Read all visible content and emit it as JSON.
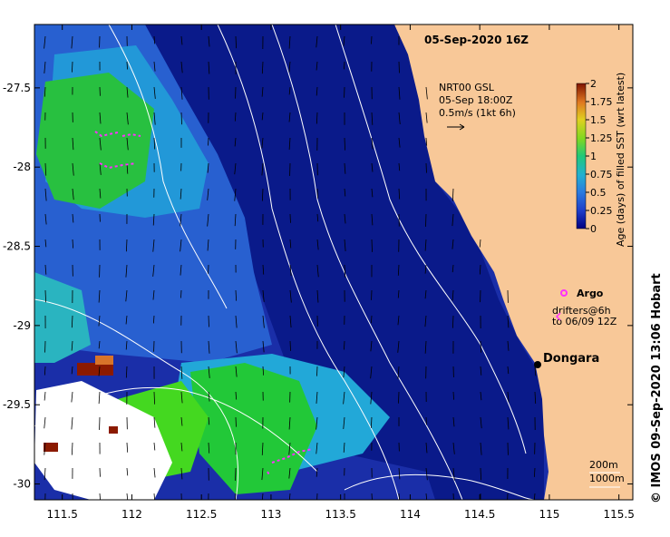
{
  "map": {
    "timestamp": "05-Sep-2020 16Z",
    "lon_range": [
      111.3,
      115.6
    ],
    "lat_range": [
      -30.1,
      -27.1
    ],
    "x_ticks": [
      "111.5",
      "112",
      "112.5",
      "113",
      "113.5",
      "114",
      "114.5",
      "115",
      "115.5"
    ],
    "y_ticks": [
      "-27.5",
      "-28",
      "-28.5",
      "-29",
      "-29.5",
      "-30"
    ],
    "y_tick_values": [
      -27.5,
      -28,
      -28.5,
      -29,
      -29.5,
      -30
    ],
    "x_tick_values": [
      111.5,
      112,
      112.5,
      113,
      113.5,
      114,
      114.5,
      115,
      115.5
    ]
  },
  "current_legend": {
    "line1": "NRT00 GSL",
    "line2": "05-Sep 18:00Z",
    "line3": "0.5m/s (1kt 6h)"
  },
  "colorbar": {
    "title": "Age (days) of filled SST (wrt latest)",
    "ticks": [
      "2",
      "1.75",
      "1.5",
      "1.25",
      "1",
      "0.75",
      "0.5",
      "0.25",
      "0"
    ],
    "colors": [
      "#8b1a00",
      "#c85a1e",
      "#e8a040",
      "#d8d820",
      "#22d022",
      "#22b4c8",
      "#2a8ad8",
      "#2050c8",
      "#000090"
    ]
  },
  "markers": {
    "argo_label": "Argo",
    "drifters_label_1": "drifters@6h",
    "drifters_label_2": "to 06/09 12Z",
    "city": "Dongara"
  },
  "depth_legend": {
    "line1": "200m",
    "line2": "1000m"
  },
  "credit": "© IMOS 09-Sep-2020 13:06 Hobart"
}
